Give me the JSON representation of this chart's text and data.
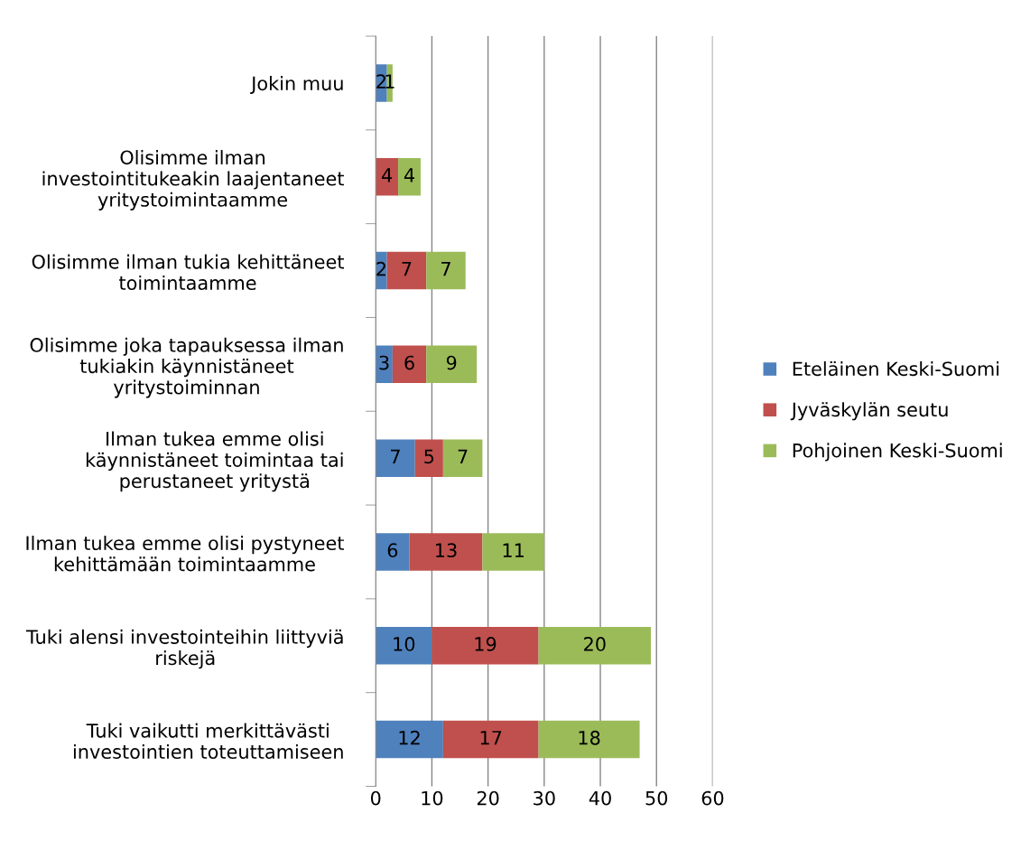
{
  "chart_data": {
    "type": "bar",
    "orientation": "horizontal",
    "stacked": true,
    "data_labels": true,
    "grid": "x",
    "legend": "right",
    "categories": [
      "Jokin muu",
      "Olisimme ilman\ninvestointitukeakin laajentaneet\nyritystoimintaamme",
      "Olisimme ilman tukia kehittäneet\ntoimintaamme",
      "Olisimme joka tapauksessa ilman\ntukiakin käynnistäneet\nyritystoiminnan",
      "Ilman tukea emme olisi\nkäynnistäneet toimintaa tai\nperustaneet yritystä",
      "Ilman tukea emme olisi pystyneet\nkehittämään toimintaamme",
      "Tuki alensi investointeihin liittyviä\nriskejä",
      "Tuki vaikutti merkittävästi\ninvestointien toteuttamiseen"
    ],
    "series": [
      {
        "name": "Eteläinen Keski-Suomi",
        "color": "#4f81bd",
        "values": [
          2,
          null,
          2,
          3,
          7,
          6,
          10,
          12
        ]
      },
      {
        "name": "Jyväskylän seutu",
        "color": "#c0504d",
        "values": [
          null,
          4,
          7,
          6,
          5,
          13,
          19,
          17
        ]
      },
      {
        "name": "Pohjoinen Keski-Suomi",
        "color": "#9bbb59",
        "values": [
          1,
          4,
          7,
          9,
          7,
          11,
          20,
          18
        ]
      }
    ],
    "xlim": [
      0,
      60
    ],
    "xticks": [
      0,
      10,
      20,
      30,
      40,
      50,
      60
    ]
  }
}
